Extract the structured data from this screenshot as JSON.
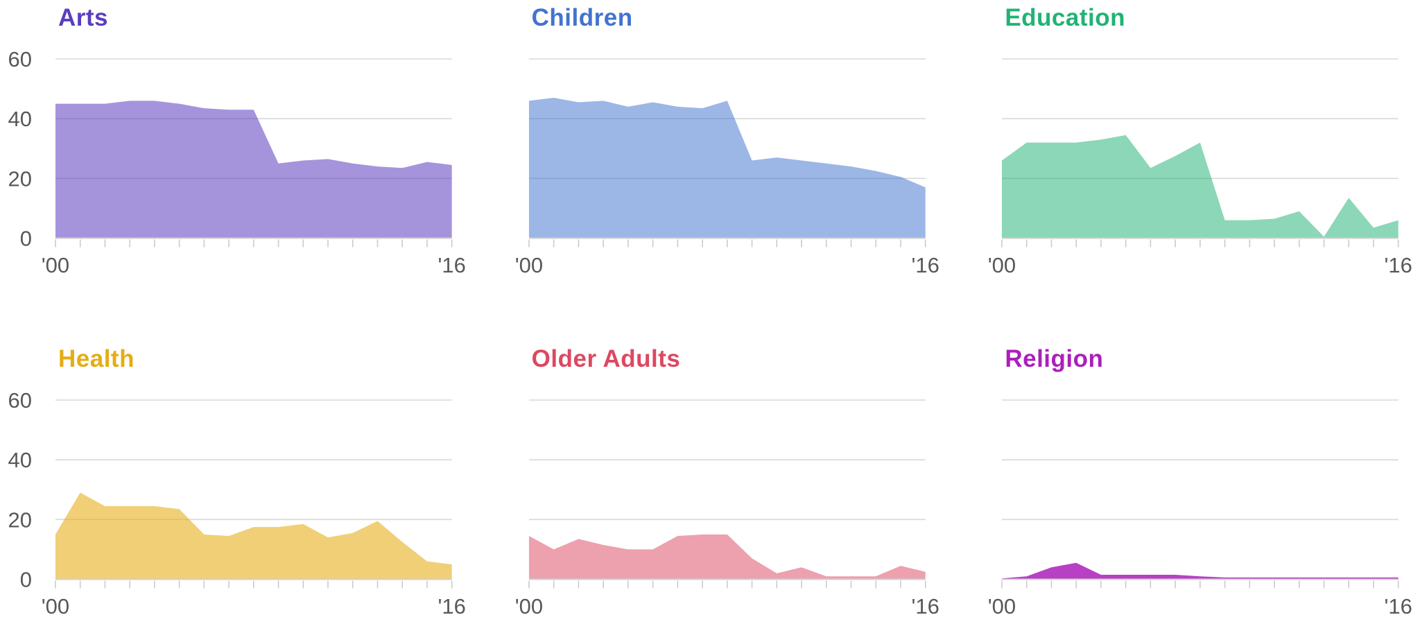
{
  "page": {
    "background": "#ffffff"
  },
  "axis": {
    "x_start_label": "'00",
    "x_end_label": "'16",
    "y_ticks": [
      "60",
      "40",
      "20",
      "0"
    ],
    "y_tick_values": [
      60,
      40,
      20,
      0
    ],
    "x_tick_count": 17,
    "text_color": "#57585a",
    "grid_color": "#d8d8d8",
    "baseline_color": "#cfcfcf",
    "tick_color": "#cbcbcb",
    "y_labels_only_on_first_column": true
  },
  "chart_data": {
    "type": "area",
    "layout": "small-multiples 2 rows x 3 columns",
    "x": [
      2000,
      2001,
      2002,
      2003,
      2004,
      2005,
      2006,
      2007,
      2008,
      2009,
      2010,
      2011,
      2012,
      2013,
      2014,
      2015,
      2016
    ],
    "x_axis_labels_shown": [
      "'00",
      "'16"
    ],
    "ylim": [
      0,
      60
    ],
    "gridlines": [
      20,
      40,
      60
    ],
    "grid": "horizontal only",
    "legend": "none",
    "charts": [
      {
        "title": "Arts",
        "title_color": "#5b3dbf",
        "fill_color": "#5b3dbf",
        "fill_opacity": 0.55,
        "values": [
          45,
          45,
          45,
          46,
          46,
          45,
          43.5,
          43,
          43,
          25,
          26,
          26.5,
          25,
          24,
          23.5,
          25.5,
          24.5
        ]
      },
      {
        "title": "Children",
        "title_color": "#4273d0",
        "fill_color": "#4273d0",
        "fill_opacity": 0.52,
        "values": [
          46,
          47,
          45.5,
          46,
          44,
          45.5,
          44,
          43.5,
          46,
          26,
          27,
          26,
          25,
          24,
          22.5,
          20.5,
          17
        ]
      },
      {
        "title": "Education",
        "title_color": "#21b374",
        "fill_color": "#21b374",
        "fill_opacity": 0.52,
        "values": [
          26,
          32,
          32,
          32,
          33,
          34.5,
          23.5,
          27.5,
          32,
          6,
          6,
          6.5,
          9,
          0.5,
          13.5,
          3.5,
          6
        ]
      },
      {
        "title": "Health",
        "title_color": "#e5ac14",
        "fill_color": "#e5ac14",
        "fill_opacity": 0.58,
        "values": [
          15,
          29,
          24.5,
          24.5,
          24.5,
          23.5,
          15,
          14.5,
          17.5,
          17.5,
          18.5,
          14,
          15.5,
          19.5,
          12.5,
          6,
          5
        ]
      },
      {
        "title": "Older Adults",
        "title_color": "#dd4861",
        "fill_color": "#dd4861",
        "fill_opacity": 0.52,
        "values": [
          14.5,
          10,
          13.5,
          11.5,
          10,
          10,
          14.5,
          15,
          15,
          7,
          2,
          4,
          1,
          1,
          1,
          4.5,
          2.5
        ]
      },
      {
        "title": "Religion",
        "title_color": "#ab1fbb",
        "fill_color": "#ab1fbb",
        "fill_opacity": 0.85,
        "values": [
          0.3,
          1,
          4,
          5.5,
          1.5,
          1.5,
          1.5,
          1.5,
          1,
          0.6,
          0.6,
          0.6,
          0.6,
          0.6,
          0.6,
          0.6,
          0.6
        ]
      }
    ]
  }
}
